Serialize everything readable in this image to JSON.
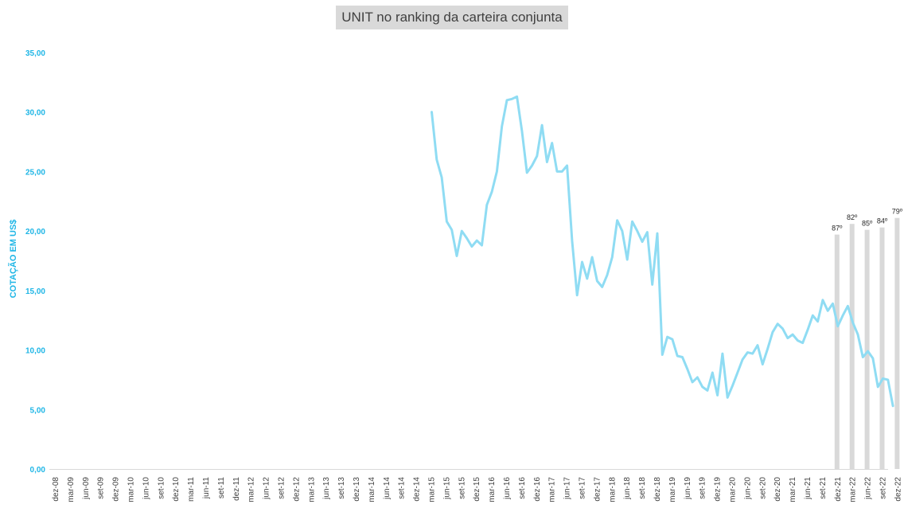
{
  "chart_data": {
    "type": "line",
    "title": "UNIT no ranking da carteira conjunta",
    "ylabel": "COTAÇÃO EM US$",
    "ylim": [
      0,
      35
    ],
    "yticks": [
      "0,00",
      "5,00",
      "10,00",
      "15,00",
      "20,00",
      "25,00",
      "30,00",
      "35,00"
    ],
    "grid": false,
    "colors": {
      "line": "#8fdcf3",
      "bar": "#d9d9d9",
      "axis_text": "#1fb6e6",
      "title_bg": "#d9d9d9"
    },
    "x_tick_labels": [
      "dez-08",
      "mar-09",
      "jun-09",
      "set-09",
      "dez-09",
      "mar-10",
      "jun-10",
      "set-10",
      "dez-10",
      "mar-11",
      "jun-11",
      "set-11",
      "dez-11",
      "mar-12",
      "jun-12",
      "set-12",
      "dez-12",
      "mar-13",
      "jun-13",
      "set-13",
      "dez-13",
      "mar-14",
      "jun-14",
      "set-14",
      "dez-14",
      "mar-15",
      "jun-15",
      "set-15",
      "dez-15",
      "mar-16",
      "jun-16",
      "set-16",
      "dez-16",
      "mar-17",
      "jun-17",
      "set-17",
      "dez-17",
      "mar-18",
      "jun-18",
      "set-18",
      "dez-18",
      "mar-19",
      "jun-19",
      "set-19",
      "dez-19",
      "mar-20",
      "jun-20",
      "set-20",
      "dez-20",
      "mar-21",
      "jun-21",
      "set-21",
      "dez-21",
      "mar-22",
      "jun-22",
      "set-22",
      "dez-22"
    ],
    "line_series": {
      "start_label": "mar-15",
      "values": [
        30.0,
        26.0,
        24.5,
        20.8,
        20.1,
        17.9,
        20.0,
        19.4,
        18.7,
        19.2,
        18.8,
        22.2,
        23.3,
        25.0,
        28.8,
        31.0,
        31.1,
        31.3,
        28.4,
        24.9,
        25.5,
        26.3,
        28.9,
        25.8,
        27.4,
        25.0,
        25.0,
        25.5,
        19.2,
        14.6,
        17.4,
        16.0,
        17.8,
        15.8,
        15.3,
        16.3,
        17.8,
        20.9,
        20.0,
        17.6,
        20.8,
        20.0,
        19.1,
        19.9,
        15.5,
        19.8,
        9.6,
        11.1,
        10.9,
        9.5,
        9.4,
        8.4,
        7.3,
        7.7,
        6.9,
        6.6,
        8.1,
        6.2,
        9.7,
        6.0,
        7.0,
        8.1,
        9.2,
        9.8,
        9.7,
        10.4,
        8.8,
        10.1,
        11.5,
        12.2,
        11.8,
        11.0,
        11.3,
        10.8,
        10.6,
        11.7,
        12.9,
        12.4,
        14.2,
        13.3,
        13.9,
        12.0,
        12.9,
        13.7,
        12.3,
        11.3,
        9.4,
        9.9,
        9.3,
        6.9,
        7.6,
        7.5,
        5.3
      ]
    },
    "bars": [
      {
        "x": "dez-21",
        "value": 19.7,
        "label": "87º"
      },
      {
        "x": "mar-22",
        "value": 20.6,
        "label": "82º"
      },
      {
        "x": "jun-22",
        "value": 20.1,
        "label": "85º"
      },
      {
        "x": "set-22",
        "value": 20.3,
        "label": "84º"
      },
      {
        "x": "dez-22",
        "value": 21.1,
        "label": "79º"
      }
    ]
  }
}
